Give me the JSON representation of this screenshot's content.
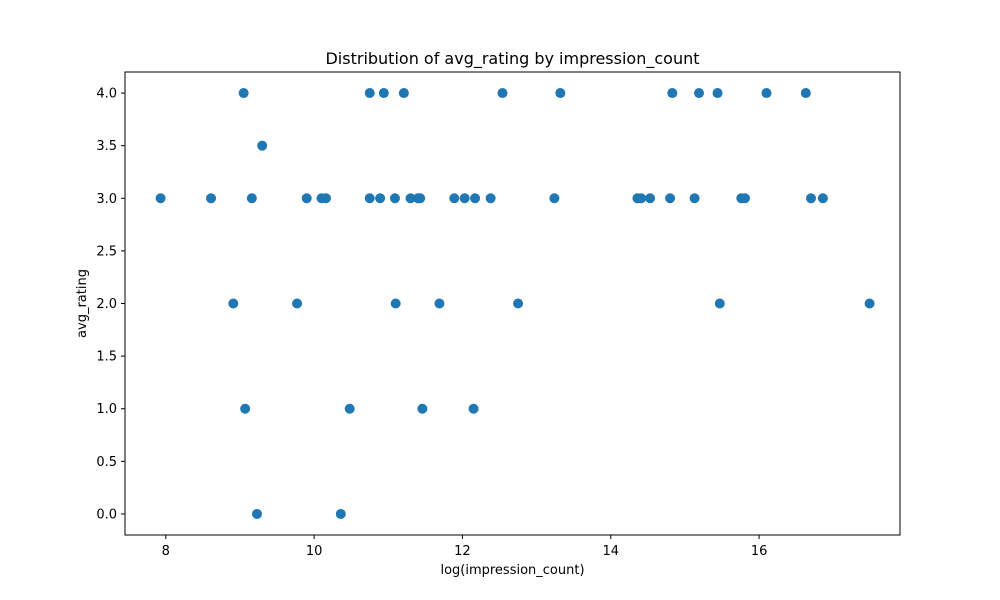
{
  "chart_data": {
    "type": "scatter",
    "title": "Distribution of avg_rating by impression_count",
    "xlabel": "log(impression_count)",
    "ylabel": "avg_rating",
    "xlim": [
      7.45,
      17.9
    ],
    "ylim": [
      -0.2,
      4.2
    ],
    "xticks": [
      8,
      10,
      12,
      14,
      16
    ],
    "yticks": [
      0.0,
      0.5,
      1.0,
      1.5,
      2.0,
      2.5,
      3.0,
      3.5,
      4.0
    ],
    "grid": false,
    "marker_color": "#1f77b4",
    "points": [
      {
        "x": 7.93,
        "y": 3.0
      },
      {
        "x": 8.61,
        "y": 3.0
      },
      {
        "x": 8.91,
        "y": 2.0
      },
      {
        "x": 9.05,
        "y": 4.0
      },
      {
        "x": 9.07,
        "y": 1.0
      },
      {
        "x": 9.16,
        "y": 3.0
      },
      {
        "x": 9.23,
        "y": 0.0
      },
      {
        "x": 9.3,
        "y": 3.5
      },
      {
        "x": 9.77,
        "y": 2.0
      },
      {
        "x": 9.9,
        "y": 3.0
      },
      {
        "x": 10.1,
        "y": 3.0
      },
      {
        "x": 10.16,
        "y": 3.0
      },
      {
        "x": 10.36,
        "y": 0.0
      },
      {
        "x": 10.48,
        "y": 1.0
      },
      {
        "x": 10.75,
        "y": 4.0
      },
      {
        "x": 10.75,
        "y": 3.0
      },
      {
        "x": 10.89,
        "y": 3.0
      },
      {
        "x": 10.94,
        "y": 4.0
      },
      {
        "x": 11.09,
        "y": 3.0
      },
      {
        "x": 11.1,
        "y": 2.0
      },
      {
        "x": 11.21,
        "y": 4.0
      },
      {
        "x": 11.3,
        "y": 3.0
      },
      {
        "x": 11.4,
        "y": 3.0
      },
      {
        "x": 11.43,
        "y": 3.0
      },
      {
        "x": 11.46,
        "y": 1.0
      },
      {
        "x": 11.69,
        "y": 2.0
      },
      {
        "x": 11.89,
        "y": 3.0
      },
      {
        "x": 12.03,
        "y": 3.0
      },
      {
        "x": 12.15,
        "y": 1.0
      },
      {
        "x": 12.17,
        "y": 3.0
      },
      {
        "x": 12.38,
        "y": 3.0
      },
      {
        "x": 12.54,
        "y": 4.0
      },
      {
        "x": 12.75,
        "y": 2.0
      },
      {
        "x": 13.24,
        "y": 3.0
      },
      {
        "x": 13.32,
        "y": 4.0
      },
      {
        "x": 14.36,
        "y": 3.0
      },
      {
        "x": 14.41,
        "y": 3.0
      },
      {
        "x": 14.53,
        "y": 3.0
      },
      {
        "x": 14.8,
        "y": 3.0
      },
      {
        "x": 14.83,
        "y": 4.0
      },
      {
        "x": 15.13,
        "y": 3.0
      },
      {
        "x": 15.19,
        "y": 4.0
      },
      {
        "x": 15.44,
        "y": 4.0
      },
      {
        "x": 15.47,
        "y": 2.0
      },
      {
        "x": 15.76,
        "y": 3.0
      },
      {
        "x": 15.81,
        "y": 3.0
      },
      {
        "x": 16.1,
        "y": 4.0
      },
      {
        "x": 16.63,
        "y": 4.0
      },
      {
        "x": 16.7,
        "y": 3.0
      },
      {
        "x": 16.86,
        "y": 3.0
      },
      {
        "x": 17.49,
        "y": 2.0
      }
    ]
  }
}
